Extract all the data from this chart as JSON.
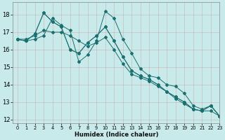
{
  "xlabel": "Humidex (Indice chaleur)",
  "background_color": "#c8eaea",
  "grid_color": "#b0d4d4",
  "line_color": "#1a7070",
  "xlim": [
    -0.5,
    23
  ],
  "ylim": [
    11.8,
    18.7
  ],
  "yticks": [
    12,
    13,
    14,
    15,
    16,
    17,
    18
  ],
  "xticks": [
    0,
    1,
    2,
    3,
    4,
    5,
    6,
    7,
    8,
    9,
    10,
    11,
    12,
    13,
    14,
    15,
    16,
    17,
    18,
    19,
    20,
    21,
    22,
    23
  ],
  "series": [
    [
      16.6,
      16.5,
      16.6,
      16.8,
      17.8,
      17.4,
      17.1,
      15.3,
      15.7,
      16.5,
      18.2,
      17.8,
      16.6,
      15.8,
      14.9,
      14.5,
      14.4,
      14.0,
      13.9,
      13.5,
      12.8,
      12.6,
      12.8,
      12.2
    ],
    [
      16.6,
      16.5,
      16.9,
      18.1,
      17.6,
      17.3,
      16.0,
      15.8,
      16.4,
      16.8,
      17.3,
      16.5,
      15.6,
      14.8,
      14.5,
      14.3,
      14.0,
      13.6,
      13.3,
      13.0,
      12.6,
      12.5,
      12.8,
      12.2
    ],
    [
      16.6,
      16.5,
      16.9,
      18.1,
      17.6,
      17.3,
      16.0,
      15.8,
      16.4,
      16.8,
      17.3,
      16.5,
      15.6,
      14.8,
      14.5,
      14.3,
      14.0,
      13.6,
      13.3,
      13.0,
      12.6,
      12.5,
      12.8,
      12.2
    ],
    [
      16.6,
      16.6,
      16.8,
      17.1,
      17.0,
      17.0,
      16.8,
      16.5,
      16.2,
      16.4,
      16.7,
      16.0,
      15.2,
      14.6,
      14.4,
      14.2,
      13.9,
      13.6,
      13.2,
      12.9,
      12.6,
      12.5,
      12.5,
      12.2
    ]
  ]
}
